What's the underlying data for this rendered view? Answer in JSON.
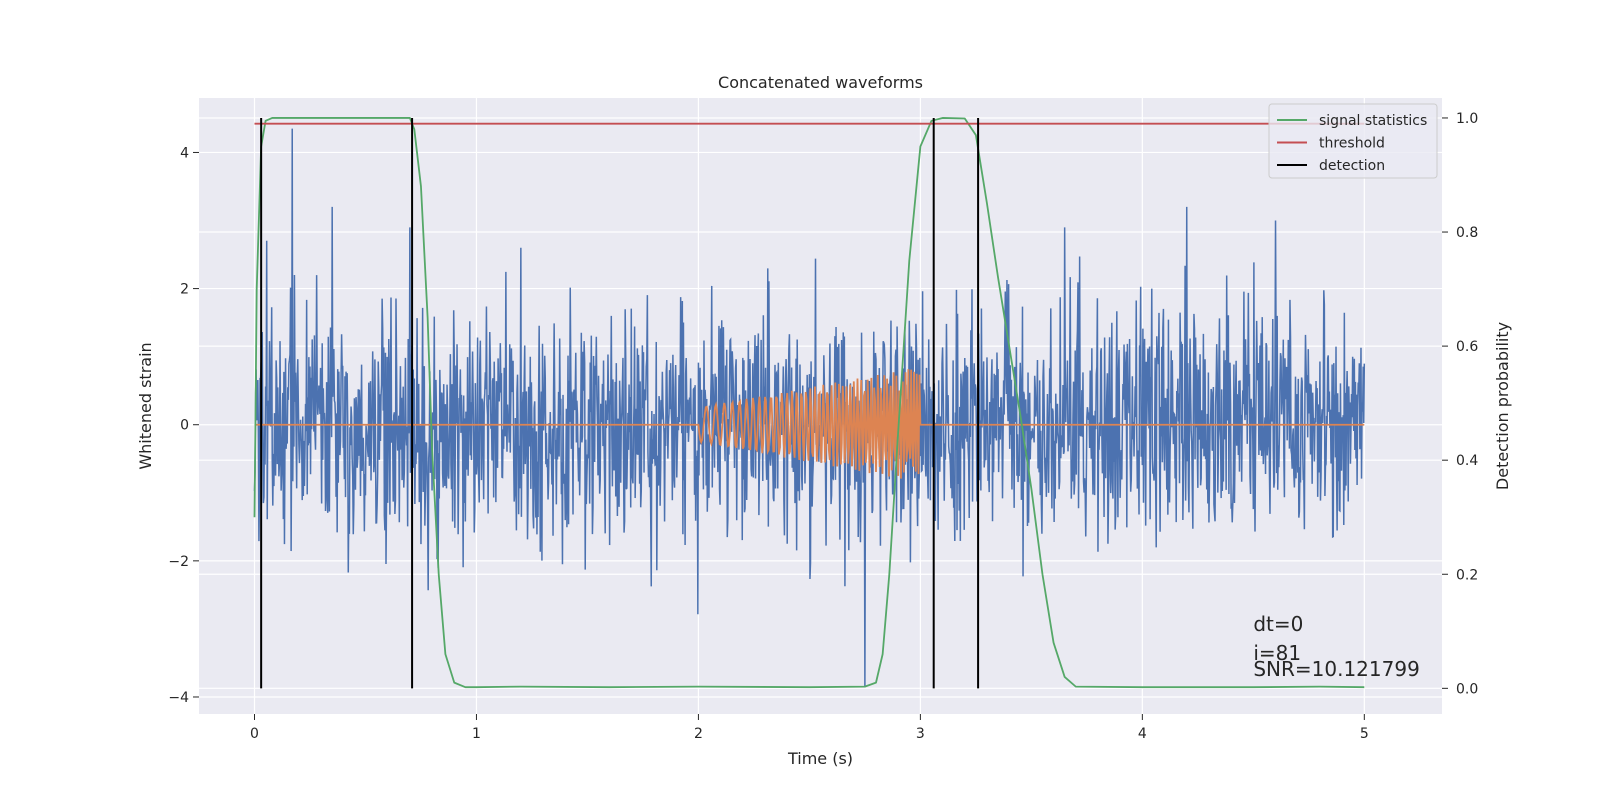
{
  "chart_data": {
    "type": "line",
    "title": "Concatenated waveforms",
    "xlabel": "Time (s)",
    "ylabel": "Whitened strain",
    "y2label": "Detection probability",
    "xlim": [
      -0.25,
      5.35
    ],
    "ylim": [
      -4.25,
      4.8
    ],
    "y2lim": [
      -0.045,
      1.035
    ],
    "xticks": [
      0,
      1,
      2,
      3,
      4,
      5
    ],
    "xtick_labels": [
      "0",
      "1",
      "2",
      "3",
      "4",
      "5"
    ],
    "yticks": [
      -4,
      -2,
      0,
      2,
      4
    ],
    "ytick_labels": [
      "−4",
      "−2",
      "0",
      "2",
      "4"
    ],
    "y2ticks": [
      0.0,
      0.2,
      0.4,
      0.6,
      0.8,
      1.0
    ],
    "y2tick_labels": [
      "0.0",
      "0.2",
      "0.4",
      "0.6",
      "0.8",
      "1.0"
    ],
    "grid": true,
    "legend_placement": "top-right",
    "colors": {
      "background": "#EAEAF2",
      "grid": "#FFFFFF",
      "noise": "#4C72B0",
      "injected": "#DD8452",
      "signal_statistics": "#55A868",
      "threshold": "#C44E52",
      "detection": "#000000"
    },
    "series": [
      {
        "name": "",
        "axis": "left",
        "color": "#4C72B0",
        "description_kind": "noise",
        "x_range": [
          0,
          5
        ],
        "amplitude_std": 0.85,
        "peak_points": [
          [
            0.17,
            4.35
          ],
          [
            0.35,
            3.2
          ],
          [
            0.7,
            2.9
          ],
          [
            1.2,
            2.6
          ],
          [
            2.75,
            -3.85
          ],
          [
            3.65,
            2.9
          ],
          [
            4.2,
            3.2
          ],
          [
            4.6,
            3.0
          ]
        ]
      },
      {
        "name": "",
        "axis": "left",
        "color": "#DD8452",
        "description_kind": "chirp",
        "chirp_start": 2.0,
        "chirp_end": 3.0,
        "amp_start": 0.25,
        "amp_end": 0.85,
        "freq_start": 20,
        "freq_end": 80
      },
      {
        "name": "signal statistics",
        "axis": "right",
        "color": "#55A868",
        "x": [
          0,
          0.01,
          0.03,
          0.05,
          0.08,
          0.1,
          0.7,
          0.72,
          0.75,
          0.78,
          0.8,
          0.83,
          0.86,
          0.9,
          0.95,
          1.0,
          1.2,
          1.6,
          2.0,
          2.5,
          2.75,
          2.8,
          2.83,
          2.86,
          2.9,
          2.95,
          3.0,
          3.05,
          3.1,
          3.2,
          3.25,
          3.3,
          3.35,
          3.4,
          3.45,
          3.5,
          3.55,
          3.6,
          3.65,
          3.7,
          4.0,
          4.5,
          4.8,
          5.0
        ],
        "y": [
          0.3,
          0.7,
          0.95,
          0.995,
          1.0,
          1.0,
          1.0,
          0.98,
          0.88,
          0.65,
          0.42,
          0.2,
          0.06,
          0.01,
          0.002,
          0.002,
          0.003,
          0.002,
          0.003,
          0.002,
          0.003,
          0.01,
          0.06,
          0.2,
          0.45,
          0.75,
          0.95,
          0.995,
          1.0,
          0.999,
          0.97,
          0.85,
          0.72,
          0.6,
          0.48,
          0.35,
          0.2,
          0.08,
          0.02,
          0.003,
          0.002,
          0.002,
          0.003,
          0.002
        ]
      },
      {
        "name": "threshold",
        "axis": "right",
        "color": "#C44E52",
        "x": [
          0,
          5
        ],
        "y": [
          0.99,
          0.99
        ]
      },
      {
        "name": "detection",
        "axis": "right",
        "color": "#000000",
        "kind": "vlines",
        "x": [
          0.03,
          0.71,
          3.06,
          3.26
        ],
        "ymin": 0.0,
        "ymax": 1.0
      }
    ],
    "legend": [
      "signal statistics",
      "threshold",
      "detection"
    ],
    "annotations": [
      "dt=0",
      "i=81",
      "SNR=10.121799"
    ]
  }
}
